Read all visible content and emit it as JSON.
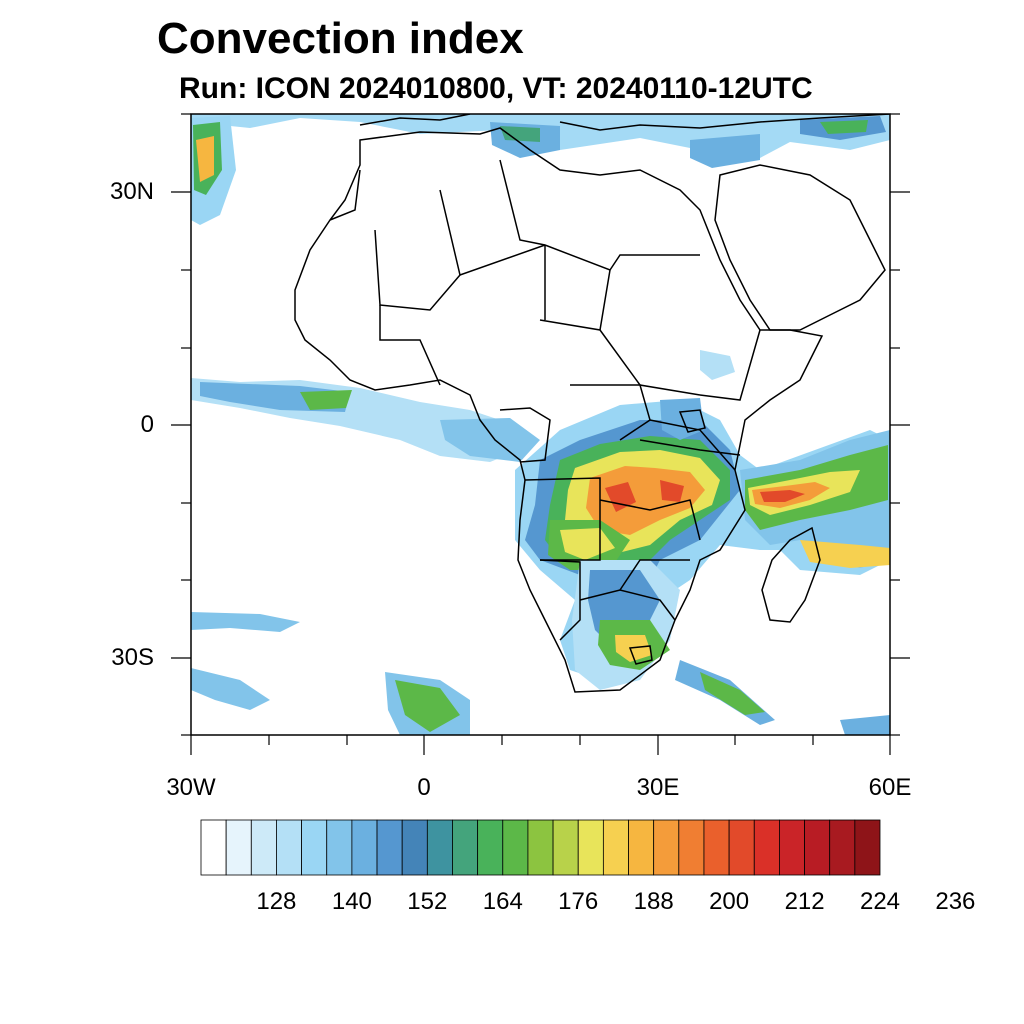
{
  "title": "Convection index",
  "subtitle": "Run: ICON 2024010800,  VT: 20240110-12UTC",
  "axes": {
    "lat_labels": [
      "30N",
      "0",
      "30S"
    ],
    "lon_labels": [
      "30W",
      "0",
      "30E",
      "60E"
    ]
  },
  "colorbar": {
    "labels": [
      "128",
      "140",
      "152",
      "164",
      "176",
      "188",
      "200",
      "212",
      "224",
      "236"
    ],
    "colors": [
      "#ffffff",
      "#e6f4fc",
      "#cdeaf8",
      "#b4e0f6",
      "#9ad6f4",
      "#82c4ea",
      "#6bb0e0",
      "#5597d0",
      "#4484b8",
      "#3e93a0",
      "#44a47c",
      "#49b25a",
      "#5cb848",
      "#8cc440",
      "#b8d24a",
      "#e8e45a",
      "#f6d050",
      "#f6b640",
      "#f49c3a",
      "#f07e32",
      "#ea602c",
      "#e24a2a",
      "#da3028",
      "#ca2428",
      "#b81c24",
      "#a81a20",
      "#8e1418"
    ]
  },
  "legend_colors": {
    "light": "#cdeaf8",
    "blue": "#6bb0e0",
    "teal": "#3e93a0",
    "green": "#5cb848",
    "yellow": "#e8e45a",
    "orange": "#f49c3a",
    "red": "#da3028"
  }
}
